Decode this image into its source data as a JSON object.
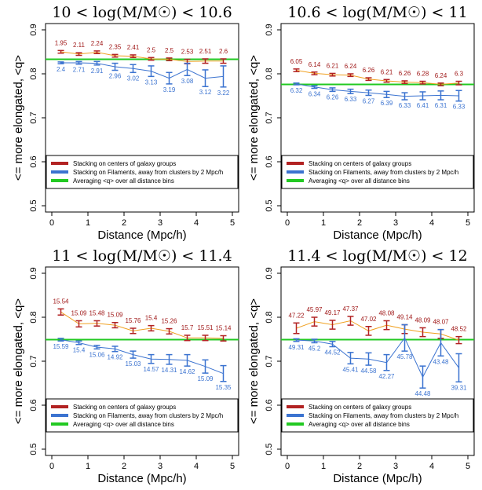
{
  "figure": {
    "xlabel": "Distance (Mpc/h)",
    "ylabel": "<= more elongated, <q>",
    "legend": [
      {
        "name": "Stacking on centers of galaxy groups",
        "color": "#b22222"
      },
      {
        "name": "Stacking on Filaments, away from clusters by 2 Mpc/h",
        "color": "#3b73d0"
      },
      {
        "name": "Averaging <q> over all distance bins",
        "color": "#22c922"
      }
    ],
    "colors": {
      "group_bar": "#b22222",
      "group_line": "#f0a020",
      "filament": "#3b73d0",
      "average": "#22c922"
    }
  },
  "chart_data": [
    {
      "type": "line",
      "title": "10 < log(M/M☉) < 10.6",
      "xlim": [
        0,
        5
      ],
      "ylim": [
        0.5,
        0.9
      ],
      "xticks": [
        "0",
        "1",
        "2",
        "3",
        "4",
        "5"
      ],
      "yticks": [
        "0.5",
        "0.6",
        "0.7",
        "0.8",
        "0.9"
      ],
      "average": 0.833,
      "x": [
        0.25,
        0.75,
        1.25,
        1.75,
        2.25,
        2.75,
        3.25,
        3.75,
        4.25,
        4.75
      ],
      "series": [
        {
          "name": "Stacking on centers of galaxy groups",
          "values": [
            0.85,
            0.845,
            0.849,
            0.841,
            0.84,
            0.834,
            0.833,
            0.828,
            0.829,
            0.829
          ],
          "errors": [
            0.003,
            0.003,
            0.003,
            0.003,
            0.003,
            0.003,
            0.003,
            0.005,
            0.005,
            0.005
          ],
          "labels": [
            "1.95",
            "2.11",
            "2.24",
            "2.35",
            "2.41",
            "2.5",
            "2.5",
            "2.53",
            "2.51",
            "2.6"
          ]
        },
        {
          "name": "Stacking on Filaments, away from clusters by 2 Mpc/h",
          "values": [
            0.825,
            0.825,
            0.824,
            0.816,
            0.812,
            0.806,
            0.79,
            0.81,
            0.79,
            0.794
          ],
          "errors": [
            0.002,
            0.003,
            0.004,
            0.008,
            0.009,
            0.012,
            0.013,
            0.014,
            0.019,
            0.024
          ],
          "labels": [
            "2.4",
            "2.71",
            "2.91",
            "2.96",
            "3.02",
            "3.13",
            "3.19",
            "3.08",
            "3.12",
            "3.22"
          ]
        }
      ]
    },
    {
      "type": "line",
      "title": "10.6 < log(M/M☉) < 11",
      "xlim": [
        0,
        5
      ],
      "ylim": [
        0.5,
        0.9
      ],
      "xticks": [
        "0",
        "1",
        "2",
        "3",
        "4",
        "5"
      ],
      "yticks": [
        "0.5",
        "0.6",
        "0.7",
        "0.8",
        "0.9"
      ],
      "average": 0.776,
      "x": [
        0.25,
        0.75,
        1.25,
        1.75,
        2.25,
        2.75,
        3.25,
        3.75,
        4.25,
        4.75
      ],
      "series": [
        {
          "name": "Stacking on centers of galaxy groups",
          "values": [
            0.808,
            0.801,
            0.798,
            0.797,
            0.788,
            0.784,
            0.781,
            0.78,
            0.776,
            0.779
          ],
          "errors": [
            0.003,
            0.003,
            0.003,
            0.003,
            0.003,
            0.003,
            0.003,
            0.003,
            0.003,
            0.004
          ],
          "labels": [
            "6.05",
            "6.14",
            "6.21",
            "6.24",
            "6.26",
            "6.21",
            "6.26",
            "6.28",
            "6.24",
            "6.3"
          ]
        },
        {
          "name": "Stacking on Filaments, away from clusters by 2 Mpc/h",
          "values": [
            0.777,
            0.77,
            0.764,
            0.76,
            0.757,
            0.753,
            0.749,
            0.75,
            0.751,
            0.75
          ],
          "errors": [
            0.002,
            0.003,
            0.004,
            0.005,
            0.006,
            0.007,
            0.008,
            0.009,
            0.01,
            0.012
          ],
          "labels": [
            "6.32",
            "6.34",
            "6.26",
            "6.33",
            "6.27",
            "6.39",
            "6.33",
            "6.41",
            "6.31",
            "6.33"
          ]
        }
      ]
    },
    {
      "type": "line",
      "title": "11 < log(M/M☉) < 11.4",
      "xlim": [
        0,
        5
      ],
      "ylim": [
        0.5,
        0.9
      ],
      "xticks": [
        "0",
        "1",
        "2",
        "3",
        "4",
        "5"
      ],
      "yticks": [
        "0.5",
        "0.6",
        "0.7",
        "0.8",
        "0.9"
      ],
      "average": 0.749,
      "x": [
        0.25,
        0.75,
        1.25,
        1.75,
        2.25,
        2.75,
        3.25,
        3.75,
        4.25,
        4.75
      ],
      "series": [
        {
          "name": "Stacking on centers of galaxy groups",
          "values": [
            0.812,
            0.785,
            0.786,
            0.782,
            0.769,
            0.775,
            0.768,
            0.753,
            0.753,
            0.752
          ],
          "errors": [
            0.007,
            0.007,
            0.006,
            0.006,
            0.006,
            0.006,
            0.006,
            0.006,
            0.006,
            0.006
          ],
          "labels": [
            "15.54",
            "15.09",
            "15.48",
            "15.09",
            "15.76",
            "15.4",
            "15.26",
            "15.7",
            "15.51",
            "15.14"
          ]
        },
        {
          "name": "Stacking on Filaments, away from clusters by 2 Mpc/h",
          "values": [
            0.749,
            0.742,
            0.732,
            0.728,
            0.715,
            0.705,
            0.704,
            0.702,
            0.688,
            0.672
          ],
          "errors": [
            0.003,
            0.004,
            0.004,
            0.006,
            0.008,
            0.01,
            0.011,
            0.013,
            0.015,
            0.018
          ],
          "labels": [
            "15.59",
            "15.4",
            "15.06",
            "14.92",
            "15.03",
            "14.57",
            "14.31",
            "14.62",
            "15.09",
            "15.35"
          ]
        }
      ]
    },
    {
      "type": "line",
      "title": "11.4 < log(M/M☉) < 12",
      "xlim": [
        0,
        5
      ],
      "ylim": [
        0.5,
        0.9
      ],
      "xticks": [
        "0",
        "1",
        "2",
        "3",
        "4",
        "5"
      ],
      "yticks": [
        "0.5",
        "0.6",
        "0.7",
        "0.8",
        "0.9"
      ],
      "average": 0.749,
      "x": [
        0.25,
        0.75,
        1.25,
        1.75,
        2.25,
        2.75,
        3.25,
        3.75,
        4.25,
        4.75
      ],
      "series": [
        {
          "name": "Stacking on centers of galaxy groups",
          "values": [
            0.775,
            0.79,
            0.783,
            0.792,
            0.769,
            0.782,
            0.773,
            0.766,
            0.762,
            0.748
          ],
          "errors": [
            0.012,
            0.01,
            0.01,
            0.01,
            0.01,
            0.01,
            0.01,
            0.01,
            0.01,
            0.008
          ],
          "labels": [
            "47.22",
            "45.97",
            "49.17",
            "47.37",
            "47.02",
            "48.08",
            "49.14",
            "48.09",
            "48.07",
            "48.52"
          ]
        },
        {
          "name": "Stacking on Filaments, away from clusters by 2 Mpc/h",
          "values": [
            0.748,
            0.746,
            0.739,
            0.707,
            0.705,
            0.697,
            0.753,
            0.664,
            0.742,
            0.685
          ],
          "errors": [
            0.003,
            0.004,
            0.006,
            0.013,
            0.014,
            0.018,
            0.03,
            0.025,
            0.03,
            0.032
          ],
          "labels": [
            "49.31",
            "45.2",
            "44.52",
            "45.41",
            "44.58",
            "42.27",
            "45.78",
            "44.48",
            "43.48",
            "39.31"
          ]
        }
      ]
    }
  ]
}
